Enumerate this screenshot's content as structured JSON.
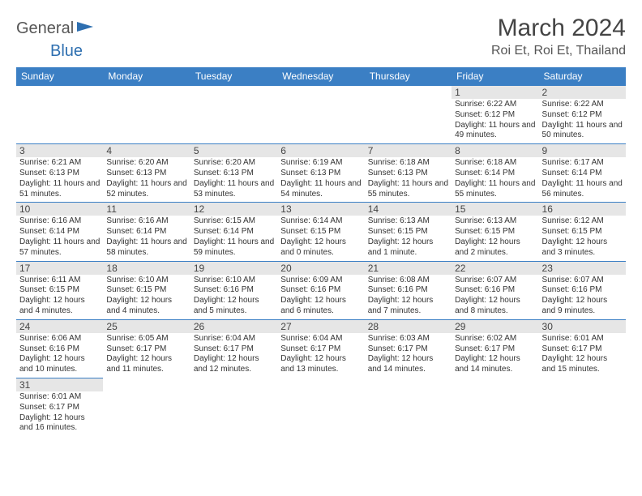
{
  "logo": {
    "text1": "General",
    "text2": "Blue"
  },
  "title": "March 2024",
  "location": "Roi Et, Roi Et, Thailand",
  "colors": {
    "header_bg": "#3b7fc4",
    "header_text": "#ffffff",
    "daynum_bg": "#e6e6e6",
    "border": "#3b7fc4",
    "logo_blue": "#2e6fb0"
  },
  "weekdays": [
    "Sunday",
    "Monday",
    "Tuesday",
    "Wednesday",
    "Thursday",
    "Friday",
    "Saturday"
  ],
  "weeks": [
    [
      null,
      null,
      null,
      null,
      null,
      {
        "d": "1",
        "sr": "6:22 AM",
        "ss": "6:12 PM",
        "dl": "11 hours and 49 minutes."
      },
      {
        "d": "2",
        "sr": "6:22 AM",
        "ss": "6:12 PM",
        "dl": "11 hours and 50 minutes."
      }
    ],
    [
      {
        "d": "3",
        "sr": "6:21 AM",
        "ss": "6:13 PM",
        "dl": "11 hours and 51 minutes."
      },
      {
        "d": "4",
        "sr": "6:20 AM",
        "ss": "6:13 PM",
        "dl": "11 hours and 52 minutes."
      },
      {
        "d": "5",
        "sr": "6:20 AM",
        "ss": "6:13 PM",
        "dl": "11 hours and 53 minutes."
      },
      {
        "d": "6",
        "sr": "6:19 AM",
        "ss": "6:13 PM",
        "dl": "11 hours and 54 minutes."
      },
      {
        "d": "7",
        "sr": "6:18 AM",
        "ss": "6:13 PM",
        "dl": "11 hours and 55 minutes."
      },
      {
        "d": "8",
        "sr": "6:18 AM",
        "ss": "6:14 PM",
        "dl": "11 hours and 55 minutes."
      },
      {
        "d": "9",
        "sr": "6:17 AM",
        "ss": "6:14 PM",
        "dl": "11 hours and 56 minutes."
      }
    ],
    [
      {
        "d": "10",
        "sr": "6:16 AM",
        "ss": "6:14 PM",
        "dl": "11 hours and 57 minutes."
      },
      {
        "d": "11",
        "sr": "6:16 AM",
        "ss": "6:14 PM",
        "dl": "11 hours and 58 minutes."
      },
      {
        "d": "12",
        "sr": "6:15 AM",
        "ss": "6:14 PM",
        "dl": "11 hours and 59 minutes."
      },
      {
        "d": "13",
        "sr": "6:14 AM",
        "ss": "6:15 PM",
        "dl": "12 hours and 0 minutes."
      },
      {
        "d": "14",
        "sr": "6:13 AM",
        "ss": "6:15 PM",
        "dl": "12 hours and 1 minute."
      },
      {
        "d": "15",
        "sr": "6:13 AM",
        "ss": "6:15 PM",
        "dl": "12 hours and 2 minutes."
      },
      {
        "d": "16",
        "sr": "6:12 AM",
        "ss": "6:15 PM",
        "dl": "12 hours and 3 minutes."
      }
    ],
    [
      {
        "d": "17",
        "sr": "6:11 AM",
        "ss": "6:15 PM",
        "dl": "12 hours and 4 minutes."
      },
      {
        "d": "18",
        "sr": "6:10 AM",
        "ss": "6:15 PM",
        "dl": "12 hours and 4 minutes."
      },
      {
        "d": "19",
        "sr": "6:10 AM",
        "ss": "6:16 PM",
        "dl": "12 hours and 5 minutes."
      },
      {
        "d": "20",
        "sr": "6:09 AM",
        "ss": "6:16 PM",
        "dl": "12 hours and 6 minutes."
      },
      {
        "d": "21",
        "sr": "6:08 AM",
        "ss": "6:16 PM",
        "dl": "12 hours and 7 minutes."
      },
      {
        "d": "22",
        "sr": "6:07 AM",
        "ss": "6:16 PM",
        "dl": "12 hours and 8 minutes."
      },
      {
        "d": "23",
        "sr": "6:07 AM",
        "ss": "6:16 PM",
        "dl": "12 hours and 9 minutes."
      }
    ],
    [
      {
        "d": "24",
        "sr": "6:06 AM",
        "ss": "6:16 PM",
        "dl": "12 hours and 10 minutes."
      },
      {
        "d": "25",
        "sr": "6:05 AM",
        "ss": "6:17 PM",
        "dl": "12 hours and 11 minutes."
      },
      {
        "d": "26",
        "sr": "6:04 AM",
        "ss": "6:17 PM",
        "dl": "12 hours and 12 minutes."
      },
      {
        "d": "27",
        "sr": "6:04 AM",
        "ss": "6:17 PM",
        "dl": "12 hours and 13 minutes."
      },
      {
        "d": "28",
        "sr": "6:03 AM",
        "ss": "6:17 PM",
        "dl": "12 hours and 14 minutes."
      },
      {
        "d": "29",
        "sr": "6:02 AM",
        "ss": "6:17 PM",
        "dl": "12 hours and 14 minutes."
      },
      {
        "d": "30",
        "sr": "6:01 AM",
        "ss": "6:17 PM",
        "dl": "12 hours and 15 minutes."
      }
    ],
    [
      {
        "d": "31",
        "sr": "6:01 AM",
        "ss": "6:17 PM",
        "dl": "12 hours and 16 minutes."
      },
      null,
      null,
      null,
      null,
      null,
      null
    ]
  ],
  "labels": {
    "sunrise": "Sunrise: ",
    "sunset": "Sunset: ",
    "daylight": "Daylight: "
  }
}
